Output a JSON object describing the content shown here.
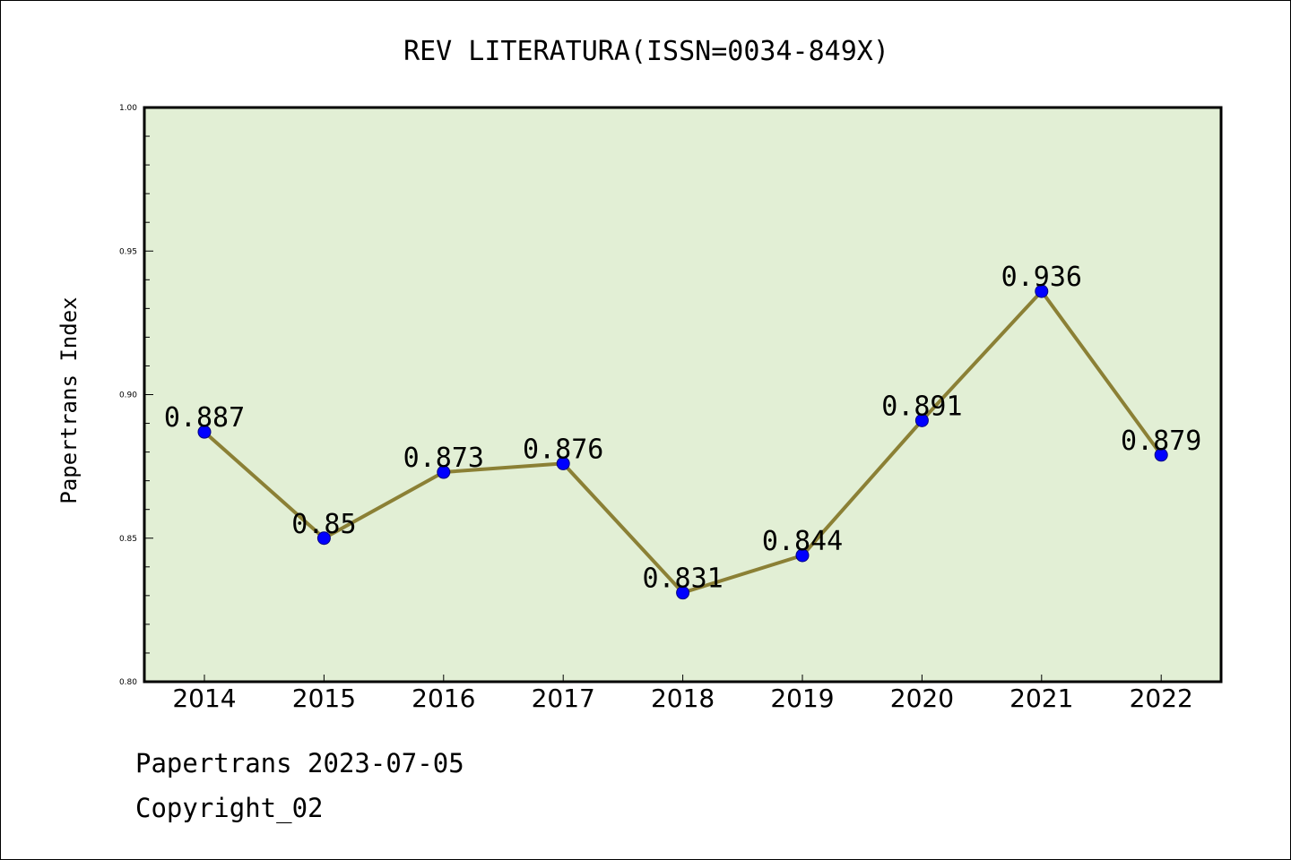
{
  "chart_data": {
    "type": "line",
    "title": "REV LITERATURA(ISSN=0034-849X)",
    "xlabel": "",
    "ylabel": "Papertrans Index",
    "x": [
      "2014",
      "2015",
      "2016",
      "2017",
      "2018",
      "2019",
      "2020",
      "2021",
      "2022"
    ],
    "series": [
      {
        "values": [
          0.887,
          0.85,
          0.873,
          0.876,
          0.831,
          0.844,
          0.891,
          0.936,
          0.879
        ],
        "labels": [
          "0.887",
          "0.85",
          "0.873",
          "0.876",
          "0.831",
          "0.844",
          "0.891",
          "0.936",
          "0.879"
        ],
        "line_color": "#8b8035",
        "marker_color": "#0000ff"
      }
    ],
    "ylim": [
      0.8,
      1.0
    ],
    "y_ticks": [
      "0.80",
      "0.85",
      "0.90",
      "0.95",
      "1.00"
    ],
    "plot_background": "#e2efd5",
    "grid": false,
    "legend": "none"
  },
  "footer": {
    "date_line": "Papertrans 2023-07-05",
    "copyright_line": "Copyright_02"
  }
}
